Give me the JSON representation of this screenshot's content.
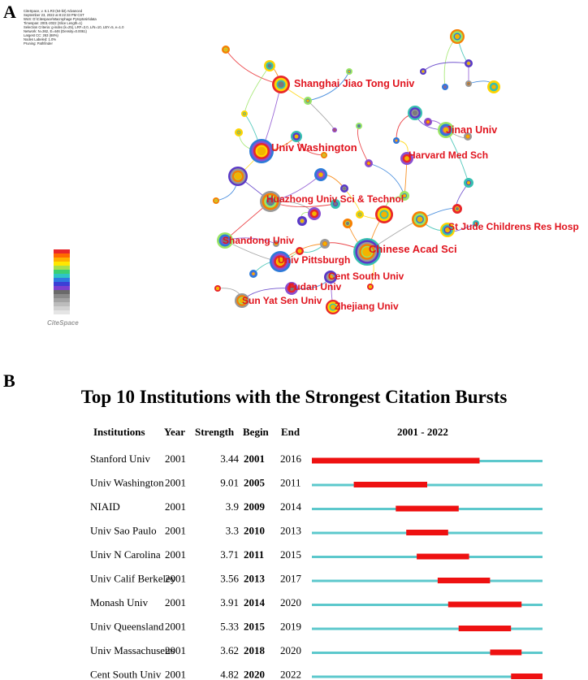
{
  "panel_a": {
    "letter": "A",
    "meta_lines": [
      "CiteSpace, v. 6.1.R3 (64-bit) Advanced",
      "September 23, 2022 at 8:22:33 PM CST",
      "WoS: D:\\Citespace\\Macrophage Pyroptosis\\data",
      "Timespan: 2001-2022 (Slice Length=1)",
      "Selection Criteria: g-index (k=25), LRF=3.0, L/N=10, LBY=5, e=1.0",
      "Network: N=362, E=446 (Density=0.0061)",
      "Largest CC: 263 (68%)",
      "Nodes Labeled: 1.0%",
      "Pruning: Pathfinder"
    ],
    "logo_text": "CiteSpace",
    "labels": [
      "Shanghai Jiao Tong Univ",
      "Jinan Univ",
      "Univ Washington",
      "Harvard Med Sch",
      "Huazhong Univ Sci & Technol",
      "St Jude Childrens Res Hosp",
      "Shandong Univ",
      "Chinese Acad Sci",
      "Univ Pittsburgh",
      "Cent South Univ",
      "Fudan Univ",
      "Sun Yat Sen Univ",
      "Zhejiang Univ"
    ]
  },
  "panel_b": {
    "letter": "B",
    "title": "Top 10 Institutions with the Strongest Citation Bursts",
    "headers": {
      "institutions": "Institutions",
      "year": "Year",
      "strength": "Strength",
      "begin": "Begin",
      "end": "End",
      "range": "2001 - 2022"
    },
    "colors": {
      "burst": "#ee1111",
      "base": "#5cc8cc"
    }
  },
  "chart_data": {
    "type": "table",
    "title": "Top 10 Institutions with the Strongest Citation Bursts",
    "timeline": [
      2001,
      2022
    ],
    "rows": [
      {
        "institution": "Stanford Univ",
        "year": "2001",
        "strength": "3.44",
        "begin": "2001",
        "end": "2016"
      },
      {
        "institution": "Univ Washington",
        "year": "2001",
        "strength": "9.01",
        "begin": "2005",
        "end": "2011"
      },
      {
        "institution": "NIAID",
        "year": "2001",
        "strength": "3.9",
        "begin": "2009",
        "end": "2014"
      },
      {
        "institution": "Univ Sao Paulo",
        "year": "2001",
        "strength": "3.3",
        "begin": "2010",
        "end": "2013"
      },
      {
        "institution": "Univ N Carolina",
        "year": "2001",
        "strength": "3.71",
        "begin": "2011",
        "end": "2015"
      },
      {
        "institution": "Univ Calif Berkeley",
        "year": "2001",
        "strength": "3.56",
        "begin": "2013",
        "end": "2017"
      },
      {
        "institution": "Monash Univ",
        "year": "2001",
        "strength": "3.91",
        "begin": "2014",
        "end": "2020"
      },
      {
        "institution": "Univ Queensland",
        "year": "2001",
        "strength": "5.33",
        "begin": "2015",
        "end": "2019"
      },
      {
        "institution": "Univ Massachusetts",
        "year": "2001",
        "strength": "3.62",
        "begin": "2018",
        "end": "2020"
      },
      {
        "institution": "Cent South Univ",
        "year": "2001",
        "strength": "4.82",
        "begin": "2020",
        "end": "2022"
      }
    ]
  }
}
